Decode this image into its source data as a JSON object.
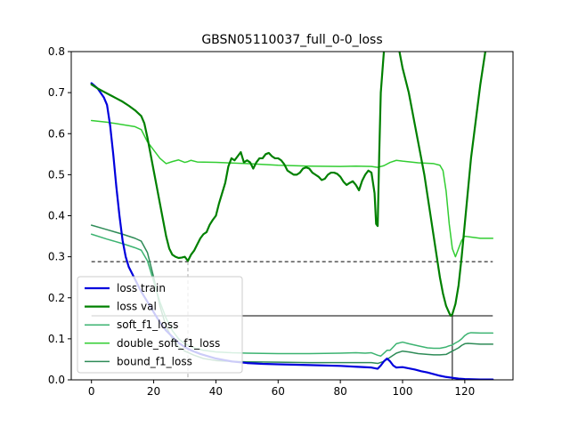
{
  "chart_data": {
    "type": "line",
    "title": "GBSN05110037_full_0-0_loss",
    "xlabel": "",
    "ylabel": "",
    "xlim": [
      -6.5,
      135.5
    ],
    "ylim": [
      0.0,
      0.8
    ],
    "xticks": [
      0,
      20,
      40,
      60,
      80,
      100,
      120
    ],
    "yticks": [
      0.0,
      0.1,
      0.2,
      0.3,
      0.4,
      0.5,
      0.6,
      0.7,
      0.8
    ],
    "xtick_labels": [
      "0",
      "20",
      "40",
      "60",
      "80",
      "100",
      "120"
    ],
    "ytick_labels": [
      "0.0",
      "0.1",
      "0.2",
      "0.3",
      "0.4",
      "0.5",
      "0.6",
      "0.7",
      "0.8"
    ],
    "grid": false,
    "legend_position": "lower-left",
    "series": [
      {
        "name": "loss train",
        "color": "#0000dd",
        "width": 2.2,
        "points": [
          [
            0,
            0.723
          ],
          [
            2,
            0.71
          ],
          [
            4,
            0.688
          ],
          [
            5,
            0.67
          ],
          [
            6,
            0.62
          ],
          [
            7,
            0.55
          ],
          [
            8,
            0.47
          ],
          [
            9,
            0.4
          ],
          [
            10,
            0.34
          ],
          [
            11,
            0.3
          ],
          [
            12,
            0.275
          ],
          [
            14,
            0.245
          ],
          [
            16,
            0.215
          ],
          [
            18,
            0.19
          ],
          [
            20,
            0.165
          ],
          [
            22,
            0.14
          ],
          [
            24,
            0.12
          ],
          [
            26,
            0.105
          ],
          [
            28,
            0.09
          ],
          [
            30,
            0.08
          ],
          [
            32,
            0.072
          ],
          [
            35,
            0.063
          ],
          [
            40,
            0.052
          ],
          [
            45,
            0.045
          ],
          [
            50,
            0.041
          ],
          [
            55,
            0.039
          ],
          [
            60,
            0.038
          ],
          [
            70,
            0.036
          ],
          [
            80,
            0.034
          ],
          [
            85,
            0.032
          ],
          [
            90,
            0.03
          ],
          [
            92,
            0.027
          ],
          [
            93,
            0.035
          ],
          [
            94,
            0.045
          ],
          [
            95,
            0.052
          ],
          [
            96,
            0.045
          ],
          [
            97,
            0.035
          ],
          [
            98,
            0.03
          ],
          [
            100,
            0.031
          ],
          [
            102,
            0.028
          ],
          [
            104,
            0.025
          ],
          [
            106,
            0.021
          ],
          [
            108,
            0.018
          ],
          [
            110,
            0.014
          ],
          [
            112,
            0.01
          ],
          [
            114,
            0.007
          ],
          [
            116,
            0.005
          ],
          [
            118,
            0.003
          ],
          [
            120,
            0.002
          ],
          [
            125,
            0.001
          ],
          [
            129,
            0.001
          ]
        ]
      },
      {
        "name": "loss val",
        "color": "#008000",
        "width": 2.2,
        "points": [
          [
            0,
            0.72
          ],
          [
            2,
            0.71
          ],
          [
            4,
            0.702
          ],
          [
            6,
            0.694
          ],
          [
            8,
            0.686
          ],
          [
            10,
            0.678
          ],
          [
            12,
            0.668
          ],
          [
            14,
            0.657
          ],
          [
            16,
            0.643
          ],
          [
            17,
            0.625
          ],
          [
            18,
            0.59
          ],
          [
            19,
            0.55
          ],
          [
            20,
            0.51
          ],
          [
            21,
            0.47
          ],
          [
            22,
            0.43
          ],
          [
            23,
            0.39
          ],
          [
            24,
            0.35
          ],
          [
            25,
            0.32
          ],
          [
            26,
            0.305
          ],
          [
            27,
            0.3
          ],
          [
            28,
            0.297
          ],
          [
            29,
            0.298
          ],
          [
            30,
            0.3
          ],
          [
            31,
            0.29
          ],
          [
            32,
            0.305
          ],
          [
            33,
            0.315
          ],
          [
            34,
            0.33
          ],
          [
            35,
            0.345
          ],
          [
            36,
            0.355
          ],
          [
            37,
            0.36
          ],
          [
            38,
            0.378
          ],
          [
            39,
            0.39
          ],
          [
            40,
            0.4
          ],
          [
            41,
            0.43
          ],
          [
            42,
            0.455
          ],
          [
            43,
            0.48
          ],
          [
            44,
            0.52
          ],
          [
            45,
            0.54
          ],
          [
            46,
            0.535
          ],
          [
            47,
            0.545
          ],
          [
            48,
            0.555
          ],
          [
            49,
            0.53
          ],
          [
            50,
            0.535
          ],
          [
            51,
            0.53
          ],
          [
            52,
            0.515
          ],
          [
            53,
            0.53
          ],
          [
            54,
            0.54
          ],
          [
            55,
            0.54
          ],
          [
            56,
            0.55
          ],
          [
            57,
            0.553
          ],
          [
            58,
            0.545
          ],
          [
            59,
            0.54
          ],
          [
            60,
            0.54
          ],
          [
            61,
            0.535
          ],
          [
            62,
            0.525
          ],
          [
            63,
            0.51
          ],
          [
            64,
            0.505
          ],
          [
            65,
            0.5
          ],
          [
            66,
            0.5
          ],
          [
            67,
            0.505
          ],
          [
            68,
            0.515
          ],
          [
            69,
            0.518
          ],
          [
            70,
            0.515
          ],
          [
            71,
            0.505
          ],
          [
            72,
            0.5
          ],
          [
            73,
            0.495
          ],
          [
            74,
            0.487
          ],
          [
            75,
            0.49
          ],
          [
            76,
            0.5
          ],
          [
            77,
            0.505
          ],
          [
            78,
            0.505
          ],
          [
            79,
            0.502
          ],
          [
            80,
            0.495
          ],
          [
            81,
            0.483
          ],
          [
            82,
            0.475
          ],
          [
            83,
            0.48
          ],
          [
            84,
            0.484
          ],
          [
            85,
            0.475
          ],
          [
            86,
            0.462
          ],
          [
            87,
            0.485
          ],
          [
            88,
            0.5
          ],
          [
            89,
            0.51
          ],
          [
            90,
            0.505
          ],
          [
            91,
            0.455
          ],
          [
            91.5,
            0.38
          ],
          [
            92,
            0.375
          ],
          [
            92.5,
            0.55
          ],
          [
            93,
            0.7
          ],
          [
            94,
            0.8
          ],
          [
            96,
            0.85
          ],
          [
            98,
            0.85
          ],
          [
            99,
            0.8
          ],
          [
            100,
            0.76
          ],
          [
            101,
            0.73
          ],
          [
            102,
            0.7
          ],
          [
            103,
            0.66
          ],
          [
            104,
            0.62
          ],
          [
            105,
            0.58
          ],
          [
            106,
            0.54
          ],
          [
            107,
            0.5
          ],
          [
            108,
            0.45
          ],
          [
            109,
            0.4
          ],
          [
            110,
            0.35
          ],
          [
            111,
            0.3
          ],
          [
            112,
            0.25
          ],
          [
            113,
            0.21
          ],
          [
            114,
            0.18
          ],
          [
            115,
            0.163
          ],
          [
            115.5,
            0.156
          ],
          [
            116,
            0.16
          ],
          [
            117,
            0.185
          ],
          [
            118,
            0.23
          ],
          [
            119,
            0.3
          ],
          [
            120,
            0.38
          ],
          [
            121,
            0.46
          ],
          [
            122,
            0.54
          ],
          [
            123,
            0.6
          ],
          [
            124,
            0.66
          ],
          [
            125,
            0.72
          ],
          [
            126,
            0.77
          ],
          [
            127,
            0.82
          ]
        ]
      },
      {
        "name": "soft_f1_loss",
        "color": "#3cb371",
        "width": 1.5,
        "points": [
          [
            0,
            0.355
          ],
          [
            5,
            0.343
          ],
          [
            10,
            0.332
          ],
          [
            14,
            0.322
          ],
          [
            16,
            0.316
          ],
          [
            18,
            0.29
          ],
          [
            20,
            0.24
          ],
          [
            22,
            0.19
          ],
          [
            24,
            0.15
          ],
          [
            26,
            0.12
          ],
          [
            28,
            0.1
          ],
          [
            30,
            0.088
          ],
          [
            33,
            0.078
          ],
          [
            36,
            0.072
          ],
          [
            40,
            0.068
          ],
          [
            45,
            0.066
          ],
          [
            50,
            0.065
          ],
          [
            60,
            0.064
          ],
          [
            70,
            0.064
          ],
          [
            80,
            0.065
          ],
          [
            85,
            0.066
          ],
          [
            88,
            0.065
          ],
          [
            90,
            0.066
          ],
          [
            92,
            0.06
          ],
          [
            93,
            0.058
          ],
          [
            94,
            0.065
          ],
          [
            95,
            0.072
          ],
          [
            96,
            0.072
          ],
          [
            97,
            0.08
          ],
          [
            98,
            0.088
          ],
          [
            100,
            0.092
          ],
          [
            102,
            0.088
          ],
          [
            105,
            0.083
          ],
          [
            108,
            0.078
          ],
          [
            110,
            0.077
          ],
          [
            112,
            0.077
          ],
          [
            114,
            0.08
          ],
          [
            115,
            0.083
          ],
          [
            116,
            0.085
          ],
          [
            117,
            0.09
          ],
          [
            118,
            0.094
          ],
          [
            119,
            0.1
          ],
          [
            120,
            0.108
          ],
          [
            121,
            0.113
          ],
          [
            122,
            0.115
          ],
          [
            125,
            0.114
          ],
          [
            129,
            0.114
          ]
        ]
      },
      {
        "name": "double_soft_f1_loss",
        "color": "#32cd32",
        "width": 1.5,
        "points": [
          [
            0,
            0.632
          ],
          [
            5,
            0.628
          ],
          [
            10,
            0.622
          ],
          [
            14,
            0.617
          ],
          [
            16,
            0.61
          ],
          [
            18,
            0.58
          ],
          [
            20,
            0.56
          ],
          [
            22,
            0.54
          ],
          [
            24,
            0.527
          ],
          [
            26,
            0.532
          ],
          [
            28,
            0.536
          ],
          [
            30,
            0.53
          ],
          [
            31,
            0.532
          ],
          [
            32,
            0.535
          ],
          [
            34,
            0.531
          ],
          [
            40,
            0.53
          ],
          [
            50,
            0.527
          ],
          [
            60,
            0.523
          ],
          [
            70,
            0.521
          ],
          [
            80,
            0.52
          ],
          [
            85,
            0.521
          ],
          [
            90,
            0.52
          ],
          [
            92,
            0.518
          ],
          [
            94,
            0.522
          ],
          [
            96,
            0.53
          ],
          [
            98,
            0.535
          ],
          [
            100,
            0.533
          ],
          [
            105,
            0.529
          ],
          [
            110,
            0.527
          ],
          [
            112,
            0.523
          ],
          [
            113,
            0.51
          ],
          [
            114,
            0.46
          ],
          [
            115,
            0.38
          ],
          [
            116,
            0.32
          ],
          [
            117,
            0.3
          ],
          [
            118,
            0.32
          ],
          [
            119,
            0.34
          ],
          [
            120,
            0.35
          ],
          [
            122,
            0.348
          ],
          [
            125,
            0.345
          ],
          [
            129,
            0.345
          ]
        ]
      },
      {
        "name": "bound_f1_loss",
        "color": "#2e8b57",
        "width": 1.5,
        "points": [
          [
            0,
            0.377
          ],
          [
            5,
            0.366
          ],
          [
            10,
            0.355
          ],
          [
            14,
            0.345
          ],
          [
            16,
            0.338
          ],
          [
            18,
            0.31
          ],
          [
            20,
            0.25
          ],
          [
            22,
            0.18
          ],
          [
            24,
            0.13
          ],
          [
            26,
            0.1
          ],
          [
            28,
            0.08
          ],
          [
            30,
            0.07
          ],
          [
            33,
            0.06
          ],
          [
            36,
            0.052
          ],
          [
            40,
            0.047
          ],
          [
            45,
            0.045
          ],
          [
            50,
            0.044
          ],
          [
            60,
            0.043
          ],
          [
            70,
            0.042
          ],
          [
            80,
            0.042
          ],
          [
            85,
            0.042
          ],
          [
            88,
            0.042
          ],
          [
            90,
            0.042
          ],
          [
            92,
            0.04
          ],
          [
            94,
            0.045
          ],
          [
            96,
            0.055
          ],
          [
            98,
            0.065
          ],
          [
            100,
            0.07
          ],
          [
            102,
            0.068
          ],
          [
            105,
            0.064
          ],
          [
            108,
            0.062
          ],
          [
            110,
            0.061
          ],
          [
            112,
            0.061
          ],
          [
            114,
            0.062
          ],
          [
            115,
            0.066
          ],
          [
            116,
            0.07
          ],
          [
            117,
            0.074
          ],
          [
            118,
            0.078
          ],
          [
            119,
            0.084
          ],
          [
            120,
            0.088
          ],
          [
            121,
            0.089
          ],
          [
            125,
            0.087
          ],
          [
            129,
            0.087
          ]
        ]
      }
    ],
    "annotations": [
      {
        "name": "min-line-dashed",
        "style": "dashed",
        "y": 0.288,
        "x_min": 0,
        "x_max": 129,
        "marker_x": 31
      },
      {
        "name": "min-line-solid",
        "style": "solid",
        "y": 0.156,
        "x_min": 0,
        "x_max": 129,
        "marker_x": 116
      }
    ]
  }
}
